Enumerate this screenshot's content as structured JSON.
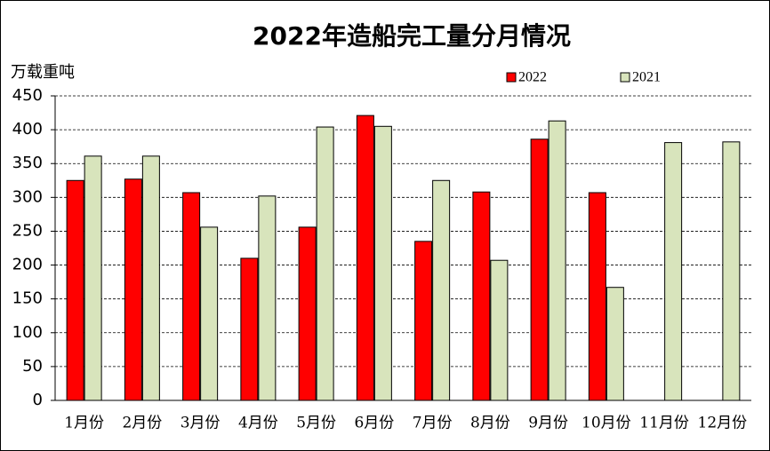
{
  "chart_data": {
    "type": "bar",
    "title": "2022年造船完工量分月情况",
    "y_label": "万载重吨",
    "categories": [
      "1月份",
      "2月份",
      "3月份",
      "4月份",
      "5月份",
      "6月份",
      "7月份",
      "8月份",
      "9月份",
      "10月份",
      "11月份",
      "12月份"
    ],
    "series": [
      {
        "name": "2022",
        "color": "#ff0000",
        "values": [
          325,
          327,
          307,
          210,
          256,
          421,
          235,
          308,
          386,
          307,
          null,
          null
        ]
      },
      {
        "name": "2021",
        "color": "#d8e4bc",
        "values": [
          361,
          361,
          256,
          302,
          404,
          405,
          325,
          207,
          413,
          167,
          381,
          382
        ]
      }
    ],
    "ylim": [
      0,
      450
    ],
    "yticks": [
      0,
      50,
      100,
      150,
      200,
      250,
      300,
      350,
      400,
      450
    ],
    "grid": true
  }
}
